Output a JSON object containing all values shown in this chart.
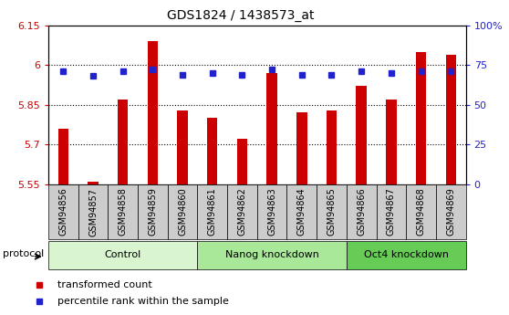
{
  "title": "GDS1824 / 1438573_at",
  "samples": [
    "GSM94856",
    "GSM94857",
    "GSM94858",
    "GSM94859",
    "GSM94860",
    "GSM94861",
    "GSM94862",
    "GSM94863",
    "GSM94864",
    "GSM94865",
    "GSM94866",
    "GSM94867",
    "GSM94868",
    "GSM94869"
  ],
  "transformed_counts": [
    5.76,
    5.56,
    5.87,
    6.09,
    5.83,
    5.8,
    5.72,
    5.97,
    5.82,
    5.83,
    5.92,
    5.87,
    6.05,
    6.04
  ],
  "percentile_ranks": [
    71,
    68,
    71,
    72,
    69,
    70,
    69,
    72,
    69,
    69,
    71,
    70,
    71,
    71
  ],
  "bar_color": "#cc0000",
  "dot_color": "#2222cc",
  "ylim_left": [
    5.55,
    6.15
  ],
  "ylim_right": [
    0,
    100
  ],
  "yticks_left": [
    5.55,
    5.7,
    5.85,
    6.0,
    6.15
  ],
  "ytick_labels_left": [
    "5.55",
    "5.7",
    "5.85",
    "6",
    "6.15"
  ],
  "yticks_right": [
    0,
    25,
    50,
    75,
    100
  ],
  "ytick_labels_right": [
    "0",
    "25",
    "50",
    "75",
    "100%"
  ],
  "groups": [
    {
      "label": "Control",
      "start": 0,
      "end": 5,
      "color": "#d8f5d0"
    },
    {
      "label": "Nanog knockdown",
      "start": 5,
      "end": 10,
      "color": "#a8e898"
    },
    {
      "label": "Oct4 knockdown",
      "start": 10,
      "end": 14,
      "color": "#66cc55"
    }
  ],
  "protocol_label": "protocol",
  "legend_items": [
    {
      "label": "transformed count",
      "color": "#cc0000"
    },
    {
      "label": "percentile rank within the sample",
      "color": "#2222cc"
    }
  ],
  "bar_bottom": 5.55,
  "tick_bg_color": "#cccccc",
  "fig_bg_color": "#ffffff",
  "bar_width": 0.35
}
